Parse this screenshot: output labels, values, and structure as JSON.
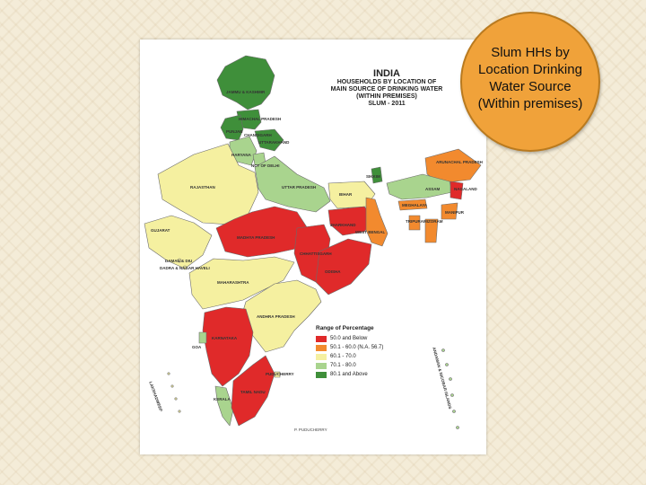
{
  "callout": {
    "text": "Slum HHs by Location Drinking Water Source (Within premises)"
  },
  "map": {
    "title": {
      "line1": "INDIA",
      "line2": "HOUSEHOLDS BY LOCATION OF",
      "line3": "MAIN SOURCE OF DRINKING WATER",
      "line4": "(WITHIN PREMISES)",
      "line5": "SLUM - 2011"
    },
    "legend": {
      "title": "Range of Percentage",
      "items": [
        {
          "label": "50.0 and Below",
          "color": "#e02a2a"
        },
        {
          "label": "50.1 - 60.0 (N.A. 56.7)",
          "color": "#f28a2e"
        },
        {
          "label": "60.1 - 70.0",
          "color": "#f5f0a0"
        },
        {
          "label": "70.1 - 80.0",
          "color": "#a9d48e"
        },
        {
          "label": "80.1 and Above",
          "color": "#3f8f3a"
        }
      ]
    },
    "labels": {
      "jk": "JAMMU & KASHMIR",
      "hp": "HIMACHAL PRADESH",
      "pb": "PUNJAB",
      "ch": "CHANDIGARH",
      "uk": "UTTARAKHAND",
      "hr": "HARYANA",
      "dl": "NCT OF DELHI",
      "rj": "RAJASTHAN",
      "up": "UTTAR PRADESH",
      "bh": "BIHAR",
      "sk": "SIKKIM",
      "ar": "ARUNACHAL PRADESH",
      "as": "ASSAM",
      "nl": "NAGALAND",
      "ml": "MEGHALAYA",
      "mn": "MANIPUR",
      "tr": "TRIPURA",
      "mz": "MIZORAM",
      "gj": "GUJARAT",
      "mp": "MADHYA PRADESH",
      "jh": "JHARKHAND",
      "wb": "WEST BENGAL",
      "cg": "CHHATTISGARH",
      "od": "ODISHA",
      "dd": "DAMAN & DIU",
      "dn": "DADRA & NAGAR HAVELI",
      "mh": "MAHARASHTRA",
      "ap": "ANDHRA PRADESH",
      "ka": "KARNATAKA",
      "go": "GOA",
      "py": "PUDUCHERRY",
      "tn": "TAMIL NADU",
      "kl": "KERALA",
      "ld": "LAKSHADWEEP",
      "an": "ANDAMAN & NICOBAR ISLANDS"
    },
    "credit": "P. PUDUCHERRY"
  }
}
